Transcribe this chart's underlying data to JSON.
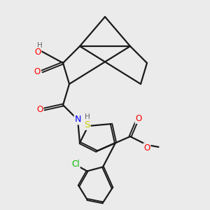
{
  "bg_color": "#ebebeb",
  "bond_color": "#1a1a1a",
  "bond_width": 1.6,
  "atom_colors": {
    "O": "#ff0000",
    "N": "#0000ff",
    "S": "#cccc00",
    "Cl": "#00bb00",
    "H": "#666666",
    "C": "#1a1a1a"
  },
  "font_size_atom": 8.5,
  "font_size_small": 7.5
}
